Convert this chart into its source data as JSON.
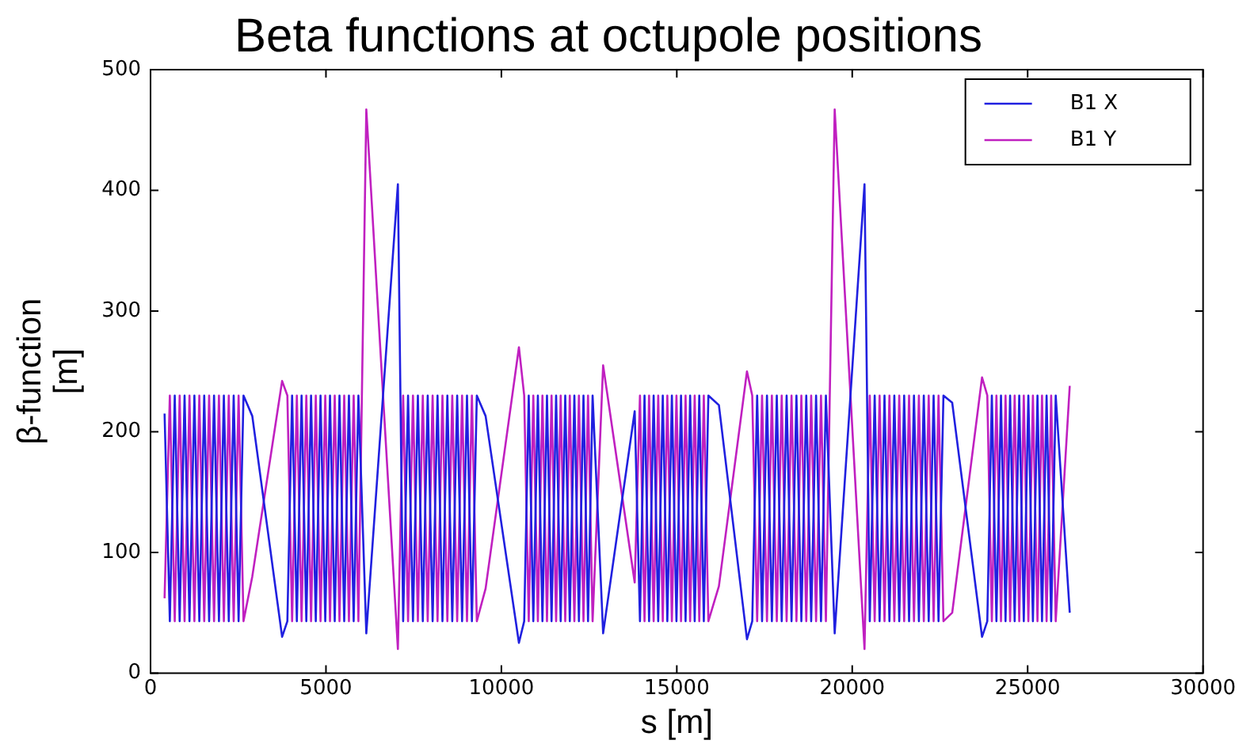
{
  "chart_data": {
    "type": "line",
    "title": "Beta functions at octupole positions",
    "xlabel": "s [m]",
    "ylabel": "β-function [m]",
    "x": [
      400,
      550,
      690,
      830,
      970,
      1110,
      1250,
      1390,
      1530,
      1670,
      1810,
      1950,
      2090,
      2230,
      2370,
      2510,
      2650,
      2900,
      3750,
      3900,
      4035,
      4170,
      4305,
      4440,
      4575,
      4710,
      4845,
      4980,
      5115,
      5250,
      5385,
      5520,
      5655,
      5790,
      5925,
      6150,
      7050,
      7200,
      7340,
      7480,
      7620,
      7760,
      7900,
      8040,
      8180,
      8320,
      8460,
      8600,
      8740,
      8880,
      9020,
      9160,
      9300,
      9550,
      10500,
      10650,
      10780,
      10910,
      11040,
      11170,
      11300,
      11430,
      11560,
      11690,
      11820,
      11950,
      12080,
      12210,
      12340,
      12470,
      12600,
      12900,
      13800,
      13950,
      14080,
      14210,
      14340,
      14470,
      14600,
      14730,
      14860,
      14990,
      15120,
      15250,
      15380,
      15510,
      15640,
      15770,
      15900,
      16200,
      17000,
      17150,
      17290,
      17430,
      17570,
      17710,
      17850,
      17990,
      18130,
      18270,
      18410,
      18550,
      18690,
      18830,
      18970,
      19110,
      19250,
      19500,
      20350,
      20500,
      20640,
      20780,
      20920,
      21060,
      21200,
      21340,
      21480,
      21620,
      21760,
      21900,
      22040,
      22180,
      22320,
      22460,
      22600,
      22850,
      23700,
      23850,
      23980,
      24110,
      24240,
      24370,
      24500,
      24630,
      24760,
      24890,
      25020,
      25150,
      25280,
      25410,
      25540,
      25670,
      25800,
      26200
    ],
    "series": [
      {
        "name": "B1 X",
        "color": "#2020e0",
        "values": [
          215,
          43,
          230,
          43,
          230,
          43,
          230,
          43,
          230,
          43,
          230,
          43,
          230,
          43,
          230,
          43,
          230,
          213,
          30,
          43,
          230,
          43,
          230,
          43,
          230,
          43,
          230,
          43,
          230,
          43,
          230,
          43,
          230,
          43,
          230,
          33,
          405,
          43,
          230,
          43,
          230,
          43,
          230,
          43,
          230,
          43,
          230,
          43,
          230,
          43,
          230,
          43,
          230,
          213,
          25,
          43,
          230,
          43,
          230,
          43,
          230,
          43,
          230,
          43,
          230,
          43,
          230,
          43,
          230,
          43,
          230,
          33,
          217,
          43,
          230,
          43,
          230,
          43,
          230,
          43,
          230,
          43,
          230,
          43,
          230,
          43,
          230,
          43,
          230,
          222,
          28,
          43,
          230,
          43,
          230,
          43,
          230,
          43,
          230,
          43,
          230,
          43,
          230,
          43,
          230,
          43,
          230,
          33,
          405,
          43,
          230,
          43,
          230,
          43,
          230,
          43,
          230,
          43,
          230,
          43,
          230,
          43,
          230,
          43,
          230,
          224,
          30,
          43,
          230,
          43,
          230,
          43,
          230,
          43,
          230,
          43,
          230,
          43,
          230,
          43,
          230,
          43,
          230,
          50
        ]
      },
      {
        "name": "B1 Y",
        "color": "#c020c0",
        "values": [
          62,
          230,
          43,
          230,
          43,
          230,
          43,
          230,
          43,
          230,
          43,
          230,
          43,
          230,
          43,
          230,
          43,
          80,
          242,
          230,
          43,
          230,
          43,
          230,
          43,
          230,
          43,
          230,
          43,
          230,
          43,
          230,
          43,
          230,
          43,
          467,
          20,
          230,
          43,
          230,
          43,
          230,
          43,
          230,
          43,
          230,
          43,
          230,
          43,
          230,
          43,
          230,
          43,
          70,
          270,
          230,
          43,
          230,
          43,
          230,
          43,
          230,
          43,
          230,
          43,
          230,
          43,
          230,
          43,
          230,
          43,
          255,
          75,
          230,
          43,
          230,
          43,
          230,
          43,
          230,
          43,
          230,
          43,
          230,
          43,
          230,
          43,
          230,
          43,
          72,
          250,
          230,
          43,
          230,
          43,
          230,
          43,
          230,
          43,
          230,
          43,
          230,
          43,
          230,
          43,
          230,
          43,
          467,
          20,
          230,
          43,
          230,
          43,
          230,
          43,
          230,
          43,
          230,
          43,
          230,
          43,
          230,
          43,
          230,
          43,
          50,
          245,
          230,
          43,
          230,
          43,
          230,
          43,
          230,
          43,
          230,
          43,
          230,
          43,
          230,
          43,
          230,
          43,
          238
        ]
      }
    ],
    "xlim": [
      0,
      30000
    ],
    "xticks": [
      0,
      5000,
      10000,
      15000,
      20000,
      25000,
      30000
    ],
    "ylim": [
      0,
      500
    ],
    "yticks": [
      0,
      100,
      200,
      300,
      400,
      500
    ],
    "grid": false,
    "legend": "top right",
    "marker": "none",
    "line_style": "solid"
  }
}
